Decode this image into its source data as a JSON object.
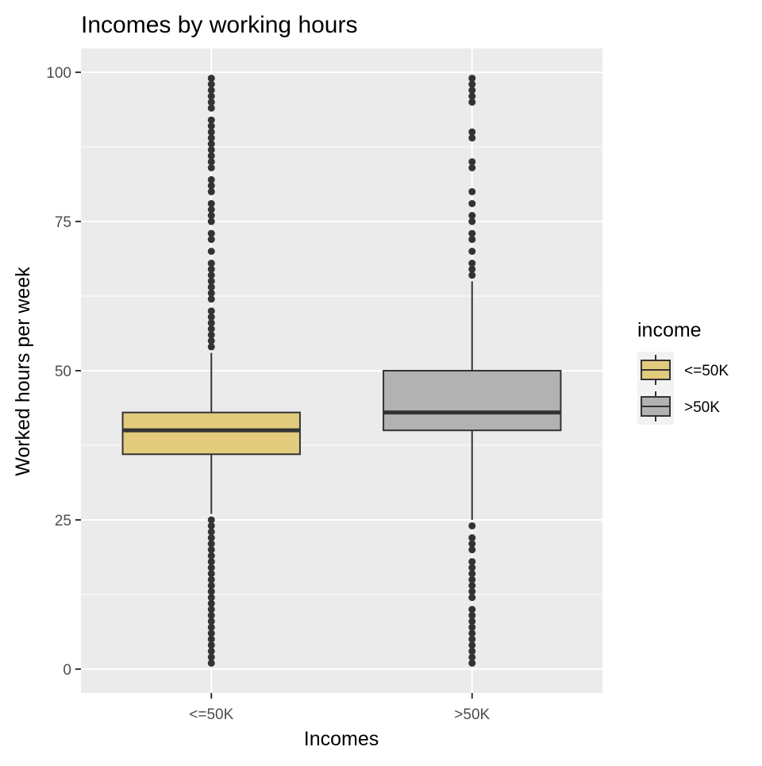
{
  "chart_data": {
    "type": "boxplot",
    "title": "Incomes by working hours",
    "xlabel": "Incomes",
    "ylabel": "Worked hours per week",
    "ylim": [
      -4,
      104
    ],
    "yticks": [
      0,
      25,
      50,
      75,
      100
    ],
    "grid": true,
    "legend": {
      "title": "income",
      "position": "right"
    },
    "groups": [
      {
        "name": "<=50K",
        "color": "#E3CB7E",
        "q1": 36,
        "median": 40,
        "q3": 43,
        "whisker_low": 26,
        "whisker_high": 53,
        "outliers": [
          1,
          2,
          3,
          4,
          5,
          6,
          7,
          8,
          9,
          10,
          11,
          12,
          13,
          14,
          15,
          16,
          17,
          18,
          19,
          20,
          21,
          22,
          23,
          24,
          25,
          54,
          55,
          56,
          57,
          58,
          59,
          60,
          62,
          63,
          64,
          65,
          66,
          67,
          68,
          70,
          72,
          73,
          75,
          76,
          77,
          78,
          80,
          81,
          82,
          84,
          85,
          86,
          87,
          88,
          89,
          90,
          91,
          92,
          94,
          95,
          96,
          97,
          98,
          99
        ]
      },
      {
        "name": ">50K",
        "color": "#B2B2B2",
        "q1": 40,
        "median": 43,
        "q3": 50,
        "whisker_low": 25,
        "whisker_high": 65,
        "outliers": [
          1,
          2,
          3,
          4,
          5,
          6,
          7,
          8,
          9,
          10,
          12,
          13,
          14,
          15,
          16,
          17,
          18,
          20,
          21,
          22,
          24,
          66,
          67,
          68,
          70,
          72,
          73,
          75,
          76,
          78,
          80,
          84,
          85,
          89,
          90,
          95,
          96,
          97,
          98,
          99
        ]
      }
    ]
  }
}
